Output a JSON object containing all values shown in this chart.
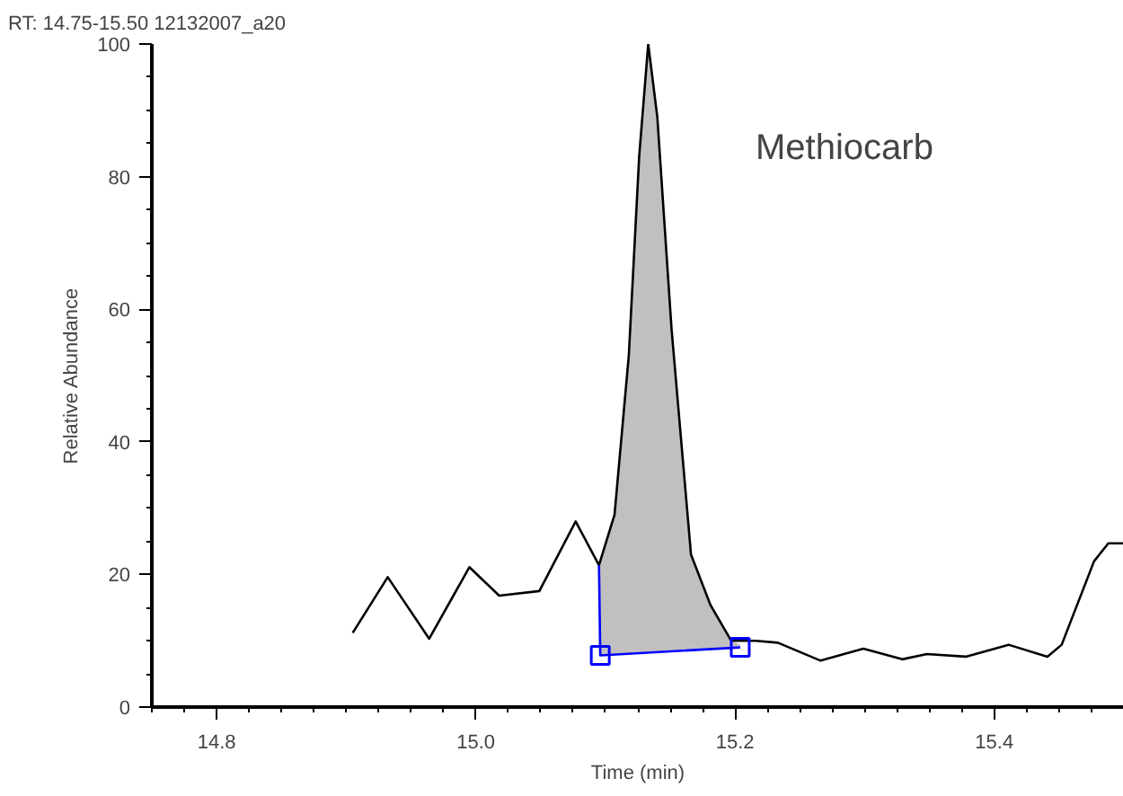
{
  "chart_data": {
    "type": "line",
    "title": "RT: 14.75-15.50 12132007_a20",
    "xlabel": "Time (min)",
    "ylabel": "Relative Abundance",
    "xlim": [
      14.75,
      15.5
    ],
    "ylim": [
      0,
      100
    ],
    "xticks": [
      14.8,
      {
        "value": 15.0,
        "label": "15.0"
      },
      15.2,
      15.4
    ],
    "yticks": [
      0,
      20,
      40,
      60,
      80,
      100
    ],
    "grid": false,
    "annotations": [
      "Methiocarb"
    ],
    "series": [
      {
        "color": "#000000",
        "x": [
          14.905,
          14.932,
          14.964,
          14.995,
          15.018,
          15.049,
          15.077,
          15.095,
          15.107,
          15.118,
          15.126,
          15.133,
          15.14,
          15.151,
          15.166,
          15.181,
          15.197,
          15.216,
          15.233,
          15.266,
          15.299,
          15.329,
          15.348,
          15.378,
          15.411,
          15.441,
          15.452,
          15.477,
          15.488,
          15.5
        ],
        "values": [
          11.2,
          19.6,
          10.3,
          21.1,
          16.8,
          17.5,
          28,
          21.4,
          29,
          53,
          83,
          100,
          89,
          57,
          23,
          15.4,
          10,
          10,
          9.7,
          7,
          8.8,
          7.2,
          8,
          7.6,
          9.4,
          7.6,
          9.4,
          22,
          24.7,
          24.7
        ]
      },
      {
        "type": "area",
        "color": "#c0c0c0",
        "x": [
          15.095,
          15.107,
          15.118,
          15.126,
          15.133,
          15.14,
          15.151,
          15.166,
          15.181,
          15.197,
          15.204
        ],
        "values": [
          21.4,
          29,
          53,
          83,
          100,
          89,
          57,
          23,
          15.4,
          10,
          9.5
        ]
      },
      {
        "type": "line",
        "color": "#0000ff",
        "x": [
          15.095,
          15.096,
          15.204
        ],
        "values": [
          21.4,
          7.8,
          9.0
        ]
      },
      {
        "type": "scatter",
        "color": "#0000ff",
        "marker": "square",
        "x": [
          15.096,
          15.204
        ],
        "values": [
          7.8,
          9.0
        ]
      }
    ]
  }
}
